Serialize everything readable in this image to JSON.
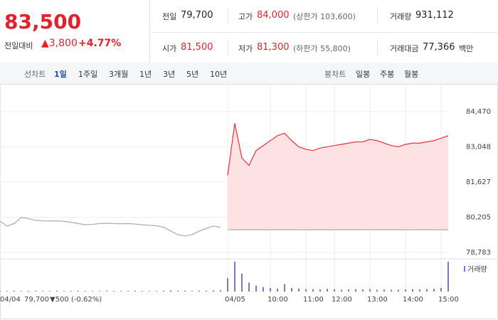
{
  "header": {
    "price": "83,500",
    "change_label": "전일대비",
    "change": "▲3,800",
    "change_rate": "+4.77%"
  },
  "info": [
    [
      {
        "label": "전일",
        "value": "79,700"
      },
      {
        "label": "고가",
        "value": "84,000",
        "note": "(상한가 103,600)"
      },
      {
        "label": "거래량",
        "value": "931,112"
      }
    ],
    [
      {
        "label": "시가",
        "value": "81,500"
      },
      {
        "label": "저가",
        "value": "81,300",
        "note": "(하한가 55,800)"
      },
      {
        "label": "거래대금",
        "value": "77,366",
        "unit": "백만"
      }
    ]
  ],
  "tabs": {
    "line_label": "선차트",
    "line_periods": [
      "1일",
      "1주일",
      "3개월",
      "1년",
      "3년",
      "5년",
      "10년"
    ],
    "selected_index": 0,
    "candle_label": "봉차트",
    "candle_periods": [
      "일봉",
      "주봉",
      "월봉"
    ]
  },
  "footer": {
    "price": "79,700",
    "change": "▼500",
    "rate": "(-0.62%)"
  },
  "chart_data": [
    {
      "type": "line",
      "ylim": [
        78582,
        85390
      ],
      "yticks": [
        {
          "value": 84470,
          "label": "84,470"
        },
        {
          "value": 83048,
          "label": "83,048"
        },
        {
          "value": 81627,
          "label": "81,627"
        },
        {
          "value": 80205,
          "label": "80,205"
        },
        {
          "value": 78783,
          "label": "78,783"
        }
      ],
      "grid": true,
      "baseline": 79700,
      "categories": [
        "04/04",
        null,
        null,
        null,
        null,
        null,
        null,
        null,
        null,
        null,
        null,
        null,
        null,
        null,
        null,
        null,
        null,
        null,
        null,
        null,
        null,
        null,
        null,
        null,
        null,
        null,
        null,
        null,
        null,
        null,
        null,
        null,
        "04/05",
        null,
        null,
        null,
        null,
        null,
        "10:00",
        null,
        null,
        null,
        null,
        "11:00",
        null,
        null,
        null,
        "12:00",
        null,
        null,
        null,
        null,
        "13:00",
        null,
        null,
        null,
        null,
        "14:00",
        null,
        null,
        null,
        null,
        "15:00",
        null
      ],
      "series": [
        {
          "color": "#aaaaaa",
          "values": [
            80050,
            79850,
            79950,
            80200,
            80150,
            80080,
            80060,
            80050,
            80060,
            80040,
            80000,
            79950,
            79900,
            79920,
            79950,
            79960,
            79950,
            79940,
            79950,
            79930,
            79900,
            79880,
            79860,
            79800,
            79650,
            79500,
            79450,
            79500,
            79650,
            79750,
            79850,
            79800,
            null,
            null,
            null,
            null,
            null,
            null,
            null,
            null,
            null,
            null,
            null,
            null,
            null,
            null,
            null,
            null,
            null,
            null,
            null,
            null,
            null,
            null,
            null,
            null,
            null,
            null,
            null,
            null,
            null,
            null,
            null,
            null
          ]
        },
        {
          "color": "#f0303a",
          "fill": "#fde2e4",
          "values": [
            null,
            null,
            null,
            null,
            null,
            null,
            null,
            null,
            null,
            null,
            null,
            null,
            null,
            null,
            null,
            null,
            null,
            null,
            null,
            null,
            null,
            null,
            null,
            null,
            null,
            null,
            null,
            null,
            null,
            null,
            null,
            null,
            81900,
            84000,
            82600,
            82300,
            82900,
            83100,
            83300,
            83500,
            83600,
            83300,
            83050,
            82950,
            82900,
            83000,
            83050,
            83100,
            83150,
            83200,
            83250,
            83250,
            83350,
            83300,
            83200,
            83100,
            83050,
            83150,
            83200,
            83200,
            83250,
            83300,
            83400,
            83500
          ]
        }
      ]
    },
    {
      "type": "bar",
      "legend": "거래량",
      "color": "#8a6fd1",
      "ylim": [
        0,
        100
      ],
      "values": [
        3,
        2,
        3,
        2,
        2,
        3,
        2,
        2,
        3,
        2,
        2,
        3,
        2,
        2,
        2,
        3,
        2,
        2,
        2,
        3,
        2,
        2,
        2,
        3,
        4,
        3,
        3,
        2,
        3,
        3,
        4,
        5,
        45,
        100,
        60,
        30,
        20,
        15,
        12,
        10,
        25,
        12,
        10,
        8,
        8,
        7,
        9,
        8,
        6,
        7,
        8,
        7,
        8,
        6,
        7,
        6,
        6,
        7,
        8,
        7,
        8,
        9,
        12,
        100
      ]
    }
  ]
}
